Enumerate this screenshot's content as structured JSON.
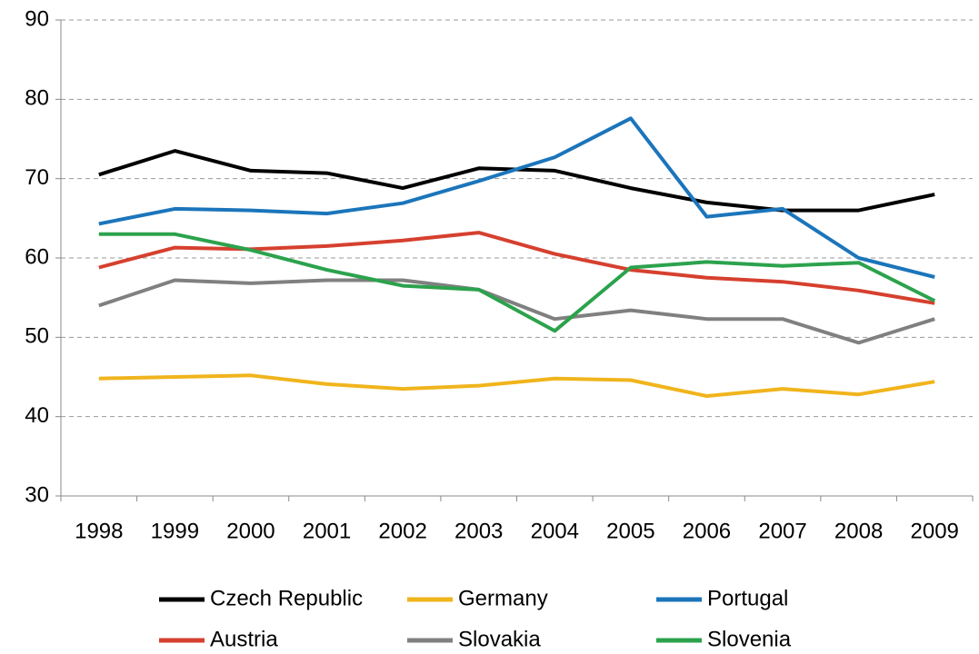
{
  "chart_data": {
    "type": "line",
    "categories": [
      "1998",
      "1999",
      "2000",
      "2001",
      "2002",
      "2003",
      "2004",
      "2005",
      "2006",
      "2007",
      "2008",
      "2009"
    ],
    "series": [
      {
        "name": "Czech Republic",
        "color": "#000000",
        "values": [
          70.5,
          73.5,
          71,
          70.7,
          68.8,
          71.3,
          71,
          68.8,
          67,
          66,
          66,
          68
        ]
      },
      {
        "name": "Germany",
        "color": "#f0b41c",
        "values": [
          44.8,
          45,
          45.2,
          44.1,
          43.5,
          43.9,
          44.8,
          44.6,
          42.6,
          43.5,
          42.8,
          44.4
        ]
      },
      {
        "name": "Portugal",
        "color": "#1b75bb",
        "values": [
          64.3,
          66.2,
          66,
          65.6,
          66.9,
          69.7,
          72.7,
          77.6,
          65.2,
          66.2,
          60,
          57.6
        ]
      },
      {
        "name": "Austria",
        "color": "#d6402f",
        "values": [
          58.8,
          61.3,
          61.1,
          61.5,
          62.2,
          63.2,
          60.5,
          58.5,
          57.5,
          57,
          55.9,
          54.3
        ]
      },
      {
        "name": "Slovakia",
        "color": "#808080",
        "values": [
          54,
          57.2,
          56.8,
          57.2,
          57.2,
          56,
          52.3,
          53.4,
          52.3,
          52.3,
          49.3,
          52.3
        ]
      },
      {
        "name": "Slovenia",
        "color": "#2ca24d",
        "values": [
          63,
          63,
          61,
          58.5,
          56.5,
          56,
          50.8,
          58.8,
          59.5,
          59,
          59.4,
          54.6
        ]
      }
    ],
    "ylim": [
      30,
      90
    ],
    "yticks": [
      30,
      40,
      50,
      60,
      70,
      80,
      90
    ],
    "grid": true
  }
}
